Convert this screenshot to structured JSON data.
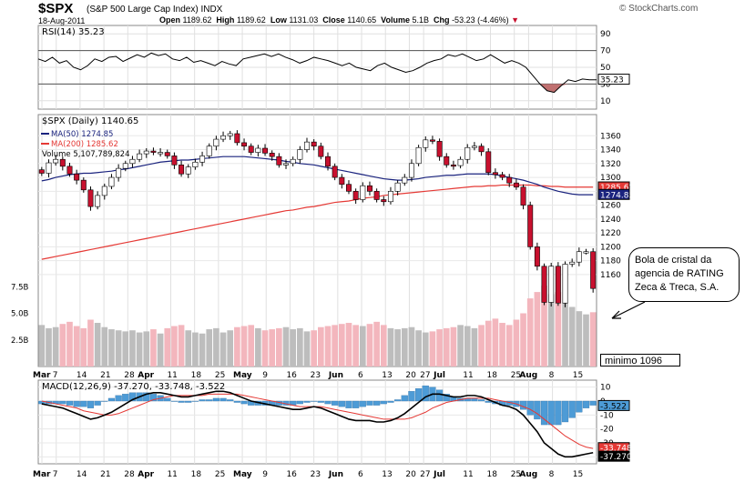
{
  "header": {
    "ticker": "$SPX",
    "name": "(S&P 500 Large Cap Index)",
    "exchange": "INDX",
    "date": "18-Aug-2011",
    "open_label": "Open",
    "open": "1189.62",
    "high_label": "High",
    "high": "1189.62",
    "low_label": "Low",
    "low": "1131.03",
    "close_label": "Close",
    "close": "1140.65",
    "volume_label": "Volume",
    "volume": "5.1B",
    "chg_label": "Chg",
    "chg": "-53.23 (-4.46%)",
    "watermark": "© StockCharts.com"
  },
  "colors": {
    "up": "#ffffff",
    "down": "#c8102e",
    "ma50": "#1a237e",
    "ma200": "#e53935",
    "macd": "#000000",
    "signal": "#e53935",
    "histogram": "#4d9bd6",
    "volume_up": "#bdbdbd",
    "volume_down": "#f3b6bd",
    "rsi_fill": "#c07070"
  },
  "annotation": {
    "callout": "Bola de cristal da agencia de RATING Zeca & Treca, S.A.",
    "min_label": "minimo 1096"
  },
  "chart_data": [
    {
      "type": "line",
      "title": "RSI(14) 35.23",
      "legend": [
        "RSI(14) 35.23"
      ],
      "yticks": [
        10,
        30,
        50,
        70,
        90
      ],
      "ylim": [
        0,
        100
      ],
      "reference_lines": [
        30,
        70
      ],
      "last_value": "35.23",
      "series": [
        {
          "values": [
            60,
            57,
            62,
            55,
            58,
            50,
            47,
            52,
            60,
            57,
            62,
            63,
            57,
            61,
            65,
            62,
            67,
            64,
            66,
            60,
            58,
            62,
            56,
            58,
            55,
            52,
            57,
            54,
            52,
            60,
            62,
            64,
            66,
            63,
            66,
            62,
            59,
            55,
            58,
            62,
            60,
            58,
            55,
            52,
            55,
            50,
            48,
            46,
            52,
            55,
            50,
            47,
            44,
            46,
            50,
            55,
            58,
            60,
            65,
            63,
            66,
            62,
            58,
            60,
            65,
            60,
            55,
            58,
            55,
            50,
            40,
            30,
            22,
            20,
            28,
            35,
            33,
            36,
            35,
            35
          ]
        }
      ]
    },
    {
      "type": "candlestick",
      "title": "$SPX (Daily) 1140.65",
      "legend": [
        "$SPX (Daily) 1140.65",
        "MA(50) 1274.85",
        "MA(200) 1285.62",
        "Volume 5,107,789,824"
      ],
      "ylim": [
        1080,
        1380
      ],
      "yticks": [
        1160,
        1180,
        1200,
        1220,
        1240,
        1260,
        1280,
        1300,
        1320,
        1340,
        1360
      ],
      "volume_ticks": [
        "2.5B",
        "5.0B",
        "7.5B"
      ],
      "ma_labels": [
        "1285.62",
        "1274.85"
      ],
      "close_label": "1140.65",
      "x_tick_labels": [
        "Mar",
        "7",
        "14",
        "21",
        "28",
        "Apr",
        "11",
        "18",
        "25",
        "May",
        "9",
        "16",
        "23",
        "Jun",
        "6",
        "13",
        "20",
        "27",
        "Jul",
        "11",
        "18",
        "25",
        "Aug",
        "8",
        "15"
      ],
      "closes": [
        1306,
        1321,
        1326,
        1316,
        1305,
        1296,
        1282,
        1258,
        1274,
        1287,
        1300,
        1313,
        1320,
        1326,
        1334,
        1338,
        1336,
        1336,
        1331,
        1318,
        1305,
        1315,
        1322,
        1331,
        1345,
        1355,
        1360,
        1363,
        1350,
        1345,
        1336,
        1342,
        1335,
        1330,
        1318,
        1320,
        1326,
        1340,
        1351,
        1345,
        1330,
        1316,
        1300,
        1290,
        1280,
        1268,
        1288,
        1280,
        1268,
        1265,
        1280,
        1292,
        1300,
        1320,
        1343,
        1354,
        1352,
        1330,
        1318,
        1317,
        1326,
        1343,
        1345,
        1337,
        1307,
        1304,
        1300,
        1292,
        1286,
        1260,
        1200,
        1172,
        1120,
        1172,
        1119,
        1175,
        1178,
        1193,
        1193,
        1140
      ],
      "ma50": [
        1295,
        1297,
        1300,
        1302,
        1304,
        1305,
        1306,
        1306,
        1307,
        1308,
        1309,
        1311,
        1312,
        1314,
        1316,
        1318,
        1320,
        1322,
        1323,
        1324,
        1325,
        1325,
        1326,
        1327,
        1328,
        1329,
        1330,
        1330,
        1330,
        1330,
        1329,
        1328,
        1327,
        1326,
        1325,
        1323,
        1322,
        1320,
        1319,
        1318,
        1316,
        1314,
        1312,
        1310,
        1308,
        1306,
        1304,
        1302,
        1300,
        1298,
        1297,
        1296,
        1296,
        1297,
        1298,
        1300,
        1301,
        1302,
        1303,
        1303,
        1304,
        1305,
        1305,
        1305,
        1305,
        1304,
        1302,
        1300,
        1298,
        1296,
        1293,
        1290,
        1286,
        1283,
        1280,
        1278,
        1276,
        1275,
        1275,
        1275
      ],
      "ma200": [
        1182,
        1184,
        1186,
        1188,
        1190,
        1192,
        1194,
        1196,
        1198,
        1200,
        1202,
        1204,
        1206,
        1208,
        1210,
        1212,
        1214,
        1216,
        1218,
        1220,
        1222,
        1224,
        1226,
        1228,
        1230,
        1232,
        1234,
        1236,
        1238,
        1240,
        1242,
        1244,
        1246,
        1248,
        1250,
        1252,
        1253,
        1255,
        1257,
        1258,
        1260,
        1262,
        1264,
        1265,
        1266,
        1268,
        1270,
        1271,
        1272,
        1274,
        1275,
        1276,
        1277,
        1278,
        1279,
        1280,
        1281,
        1282,
        1283,
        1284,
        1285,
        1286,
        1287,
        1287,
        1288,
        1288,
        1289,
        1289,
        1289,
        1289,
        1289,
        1288,
        1288,
        1287,
        1287,
        1286,
        1286,
        1286,
        1286,
        1286
      ],
      "volume": [
        3.9,
        3.6,
        3.7,
        4.0,
        4.2,
        3.8,
        3.6,
        4.4,
        4.1,
        3.7,
        3.5,
        3.4,
        3.3,
        3.4,
        3.2,
        3.3,
        3.5,
        3.1,
        3.6,
        3.8,
        3.9,
        3.4,
        3.2,
        3.1,
        3.5,
        3.6,
        3.2,
        3.4,
        3.7,
        3.8,
        3.9,
        3.6,
        3.4,
        3.5,
        3.6,
        3.7,
        3.5,
        3.6,
        3.3,
        3.4,
        3.7,
        3.8,
        3.9,
        4.0,
        4.1,
        3.9,
        3.8,
        4.0,
        4.2,
        3.9,
        3.6,
        3.5,
        3.6,
        3.7,
        3.4,
        3.2,
        3.3,
        3.5,
        3.6,
        3.7,
        3.9,
        3.8,
        3.6,
        3.9,
        4.3,
        4.5,
        4.1,
        3.9,
        4.4,
        5.0,
        6.4,
        7.0,
        7.6,
        6.8,
        7.0,
        6.0,
        5.6,
        5.2,
        4.9,
        5.1
      ]
    },
    {
      "type": "line",
      "title": "MACD(12,26,9) -37.270, -33.748, -3.522",
      "legend": [
        "MACD(12,26,9) -37.270, -33.748, -3.522"
      ],
      "ylim": [
        -45,
        15
      ],
      "yticks": [
        10,
        0,
        -10,
        -20,
        -30,
        -40
      ],
      "last_labels": [
        "-3.522",
        "-33.748",
        "-37.270"
      ],
      "x_tick_labels": [
        "Mar",
        "7",
        "14",
        "21",
        "28",
        "Apr",
        "11",
        "18",
        "25",
        "May",
        "9",
        "16",
        "23",
        "Jun",
        "6",
        "13",
        "20",
        "27",
        "Jul",
        "11",
        "18",
        "25",
        "Aug",
        "8",
        "15"
      ],
      "series": [
        {
          "name": "MACD",
          "values": [
            -2,
            -3,
            -4,
            -5,
            -7,
            -9,
            -11,
            -13,
            -12,
            -10,
            -8,
            -5,
            -2,
            1,
            3,
            5,
            6,
            6,
            5,
            4,
            3,
            3,
            4,
            5,
            6,
            7,
            7,
            6,
            4,
            2,
            0,
            -1,
            -2,
            -3,
            -4,
            -5,
            -6,
            -6,
            -5,
            -4,
            -5,
            -7,
            -9,
            -11,
            -13,
            -14,
            -14,
            -14,
            -15,
            -15,
            -14,
            -12,
            -9,
            -5,
            -1,
            3,
            5,
            5,
            4,
            3,
            3,
            4,
            4,
            3,
            1,
            -1,
            -3,
            -4,
            -6,
            -10,
            -16,
            -22,
            -30,
            -34,
            -38,
            -40,
            -40,
            -39,
            -38,
            -37
          ]
        },
        {
          "name": "Signal",
          "values": [
            0,
            -1,
            -2,
            -3,
            -4,
            -5,
            -7,
            -8,
            -9,
            -10,
            -10,
            -9,
            -7,
            -5,
            -3,
            -1,
            1,
            2,
            3,
            4,
            4,
            4,
            4,
            4,
            5,
            5,
            5,
            5,
            5,
            4,
            3,
            2,
            1,
            0,
            -1,
            -2,
            -3,
            -4,
            -4,
            -4,
            -4,
            -5,
            -6,
            -7,
            -8,
            -9,
            -10,
            -11,
            -12,
            -13,
            -13,
            -13,
            -13,
            -12,
            -10,
            -8,
            -5,
            -3,
            -1,
            0,
            1,
            2,
            2,
            2,
            2,
            1,
            0,
            -1,
            -2,
            -4,
            -6,
            -9,
            -13,
            -17,
            -21,
            -25,
            -28,
            -31,
            -33,
            -34
          ]
        }
      ]
    }
  ]
}
